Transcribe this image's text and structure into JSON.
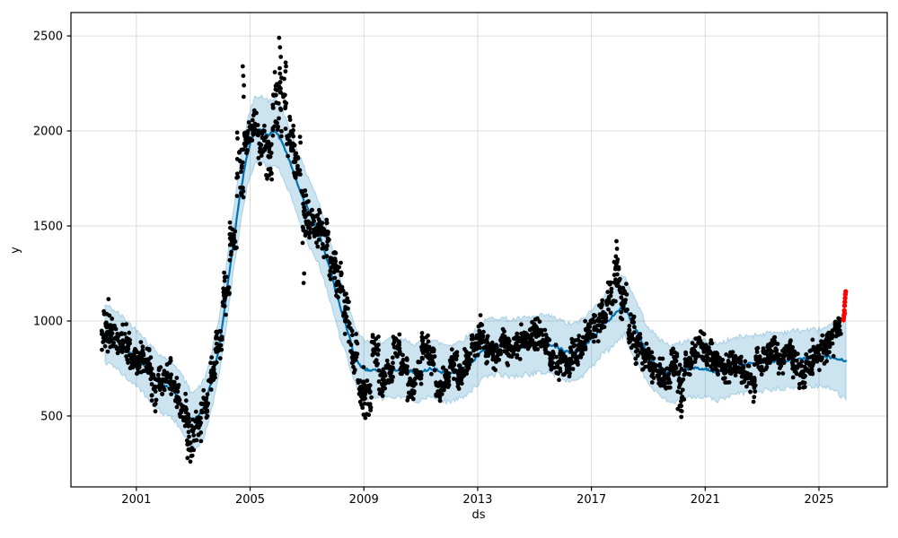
{
  "figure": {
    "kind": "prophet-style forecast plot",
    "title": "",
    "background": "#ffffff"
  },
  "colors": {
    "observed_marker": "#000000",
    "forecast_line": "#0072B2",
    "uncertainty_band": "rgba(0,114,178,0.2)",
    "highlight_marker": "#ff0000",
    "grid": "#dcdcdc",
    "spine": "#000000",
    "text": "#000000"
  },
  "chart_data": {
    "type": "scatter",
    "title": "",
    "xlabel": "ds",
    "ylabel": "y",
    "xlim": [
      1998.7,
      2027.4
    ],
    "ylim": [
      127,
      2623
    ],
    "xticks": [
      2001,
      2005,
      2009,
      2013,
      2017,
      2021,
      2025
    ],
    "yticks": [
      500,
      1000,
      1500,
      2000,
      2500
    ],
    "grid": true,
    "legend": "none",
    "t": [
      1999.9,
      2000.15,
      2000.4,
      2000.65,
      2000.9,
      2001.15,
      2001.4,
      2001.65,
      2001.9,
      2002.15,
      2002.4,
      2002.65,
      2002.9,
      2003.15,
      2003.4,
      2003.65,
      2003.9,
      2004.15,
      2004.4,
      2004.65,
      2004.9,
      2005.15,
      2005.4,
      2005.65,
      2005.9,
      2006.15,
      2006.4,
      2006.65,
      2006.9,
      2007.15,
      2007.4,
      2007.65,
      2007.9,
      2008.15,
      2008.4,
      2008.65,
      2008.9,
      2009.15,
      2009.4,
      2009.65,
      2009.9,
      2010.15,
      2010.4,
      2010.65,
      2010.9,
      2011.15,
      2011.4,
      2011.65,
      2011.9,
      2012.15,
      2012.4,
      2012.65,
      2012.9,
      2013.15,
      2013.4,
      2013.65,
      2013.9,
      2014.15,
      2014.4,
      2014.65,
      2014.9,
      2015.15,
      2015.4,
      2015.65,
      2015.9,
      2016.15,
      2016.4,
      2016.65,
      2016.9,
      2017.15,
      2017.4,
      2017.65,
      2017.9,
      2018.15,
      2018.4,
      2018.65,
      2018.9,
      2019.15,
      2019.4,
      2019.65,
      2019.9,
      2020.15,
      2020.4,
      2020.65,
      2020.9,
      2021.15,
      2021.4,
      2021.65,
      2021.9,
      2022.15,
      2022.4,
      2022.65,
      2022.9,
      2023.15,
      2023.4,
      2023.65,
      2023.9,
      2024.15,
      2024.4,
      2024.65,
      2024.9,
      2025.15,
      2025.4,
      2025.65,
      2025.95
    ],
    "series": [
      {
        "name": "observed",
        "kind": "scatter",
        "color": "#000000",
        "y": [
          930,
          940,
          900,
          880,
          800,
          810,
          760,
          640,
          690,
          710,
          620,
          540,
          390,
          450,
          560,
          720,
          870,
          1140,
          1420,
          1800,
          1950,
          2010,
          1940,
          1880,
          2120,
          2170,
          1960,
          1830,
          1560,
          1530,
          1490,
          1450,
          1300,
          1190,
          1020,
          820,
          640,
          610,
          840,
          680,
          760,
          880,
          760,
          630,
          720,
          870,
          800,
          630,
          700,
          780,
          710,
          770,
          860,
          920,
          850,
          820,
          880,
          850,
          880,
          900,
          910,
          930,
          880,
          800,
          770,
          770,
          820,
          870,
          930,
          980,
          1030,
          1130,
          1230,
          1120,
          950,
          870,
          800,
          760,
          730,
          700,
          780,
          660,
          790,
          850,
          870,
          820,
          780,
          740,
          760,
          780,
          730,
          680,
          790,
          820,
          840,
          800,
          850,
          780,
          720,
          780,
          820,
          840,
          900,
          960,
          null
        ],
        "spread": [
          130,
          100,
          100,
          110,
          100,
          100,
          110,
          130,
          100,
          110,
          100,
          110,
          130,
          110,
          100,
          110,
          100,
          120,
          130,
          220,
          140,
          110,
          140,
          150,
          220,
          230,
          150,
          140,
          220,
          120,
          110,
          130,
          120,
          130,
          150,
          150,
          150,
          110,
          100,
          90,
          90,
          90,
          90,
          70,
          80,
          90,
          90,
          70,
          80,
          90,
          80,
          90,
          100,
          100,
          90,
          90,
          90,
          90,
          90,
          90,
          90,
          90,
          90,
          90,
          90,
          90,
          90,
          90,
          90,
          100,
          110,
          120,
          170,
          120,
          110,
          100,
          90,
          90,
          90,
          70,
          90,
          160,
          100,
          90,
          90,
          90,
          90,
          90,
          90,
          90,
          90,
          110,
          90,
          90,
          90,
          90,
          90,
          90,
          80,
          80,
          90,
          90,
          90,
          70,
          null
        ]
      },
      {
        "name": "forecast_yhat",
        "kind": "line",
        "color": "#0072B2",
        "y": [
          935,
          915,
          885,
          855,
          815,
          790,
          735,
          700,
          665,
          650,
          615,
          550,
          485,
          490,
          545,
          690,
          855,
          1120,
          1400,
          1670,
          1880,
          2000,
          2010,
          1980,
          2000,
          1930,
          1840,
          1730,
          1630,
          1550,
          1470,
          1350,
          1220,
          1080,
          960,
          830,
          760,
          740,
          740,
          745,
          750,
          745,
          750,
          735,
          730,
          740,
          750,
          735,
          725,
          730,
          745,
          770,
          800,
          840,
          860,
          870,
          865,
          855,
          860,
          865,
          870,
          875,
          880,
          870,
          855,
          835,
          835,
          855,
          890,
          930,
          975,
          1010,
          1050,
          1085,
          1000,
          930,
          845,
          790,
          755,
          730,
          720,
          735,
          750,
          755,
          750,
          745,
          730,
          740,
          755,
          765,
          770,
          775,
          780,
          785,
          790,
          790,
          795,
          800,
          800,
          805,
          805,
          810,
          810,
          800,
          790
        ]
      },
      {
        "name": "uncertainty_interval",
        "kind": "band",
        "color": "rgba(0,114,178,0.2)",
        "lower": [
          785,
          765,
          735,
          705,
          665,
          640,
          585,
          550,
          515,
          500,
          465,
          400,
          335,
          340,
          395,
          540,
          705,
          960,
          1240,
          1495,
          1705,
          1825,
          1835,
          1805,
          1825,
          1755,
          1665,
          1555,
          1455,
          1375,
          1310,
          1190,
          1060,
          920,
          810,
          680,
          610,
          590,
          590,
          595,
          600,
          595,
          600,
          585,
          580,
          590,
          600,
          585,
          575,
          580,
          595,
          620,
          650,
          690,
          710,
          720,
          715,
          705,
          710,
          715,
          720,
          725,
          730,
          720,
          705,
          685,
          685,
          705,
          740,
          780,
          825,
          850,
          890,
          925,
          840,
          780,
          695,
          640,
          605,
          580,
          570,
          585,
          600,
          605,
          600,
          595,
          580,
          590,
          605,
          615,
          620,
          625,
          630,
          635,
          640,
          640,
          645,
          650,
          650,
          655,
          655,
          660,
          645,
          620,
          585
        ],
        "upper": [
          1085,
          1065,
          1035,
          1005,
          965,
          940,
          885,
          850,
          815,
          800,
          765,
          700,
          635,
          640,
          695,
          840,
          1005,
          1280,
          1560,
          1845,
          2055,
          2175,
          2185,
          2155,
          2175,
          2105,
          2015,
          1905,
          1805,
          1725,
          1630,
          1510,
          1380,
          1240,
          1110,
          980,
          910,
          890,
          890,
          895,
          900,
          895,
          900,
          885,
          880,
          890,
          900,
          885,
          875,
          880,
          895,
          920,
          950,
          990,
          1010,
          1020,
          1015,
          1005,
          1010,
          1015,
          1020,
          1025,
          1030,
          1020,
          1005,
          985,
          985,
          1005,
          1040,
          1080,
          1125,
          1170,
          1210,
          1245,
          1160,
          1080,
          995,
          940,
          905,
          880,
          870,
          885,
          900,
          905,
          900,
          895,
          880,
          890,
          905,
          915,
          920,
          925,
          930,
          935,
          940,
          940,
          945,
          950,
          950,
          955,
          955,
          960,
          975,
          980,
          995
        ]
      },
      {
        "name": "observed_extremes",
        "kind": "scatter",
        "color": "#000000",
        "points": [
          [
            2000.02,
            1115
          ],
          [
            2002.88,
            320
          ],
          [
            2002.9,
            260
          ],
          [
            2002.93,
            290
          ],
          [
            2004.74,
            2340
          ],
          [
            2004.76,
            2290
          ],
          [
            2004.77,
            2180
          ],
          [
            2004.78,
            2240
          ],
          [
            2006.02,
            2490
          ],
          [
            2006.04,
            2330
          ],
          [
            2006.05,
            2440
          ],
          [
            2006.08,
            2390
          ],
          [
            2006.1,
            2280
          ],
          [
            2006.88,
            1200
          ],
          [
            2006.9,
            1250
          ],
          [
            2009.05,
            490
          ],
          [
            2009.1,
            510
          ],
          [
            2010.68,
            600
          ],
          [
            2011.68,
            580
          ],
          [
            2013.1,
            1030
          ],
          [
            2017.86,
            1340
          ],
          [
            2017.88,
            1420
          ],
          [
            2017.9,
            1380
          ],
          [
            2019.62,
            645
          ],
          [
            2020.14,
            555
          ],
          [
            2020.16,
            495
          ],
          [
            2020.18,
            525
          ],
          [
            2022.7,
            575
          ],
          [
            2022.72,
            600
          ],
          [
            2024.45,
            650
          ]
        ]
      },
      {
        "name": "highlighted_recent",
        "kind": "scatter",
        "color": "#ff0000",
        "points": [
          [
            2025.86,
            1005
          ],
          [
            2025.87,
            1015
          ],
          [
            2025.88,
            1030
          ],
          [
            2025.89,
            1055
          ],
          [
            2025.9,
            1080
          ],
          [
            2025.9,
            1040
          ],
          [
            2025.91,
            1100
          ],
          [
            2025.92,
            1120
          ],
          [
            2025.93,
            1140
          ],
          [
            2025.94,
            1155
          ]
        ]
      }
    ]
  }
}
